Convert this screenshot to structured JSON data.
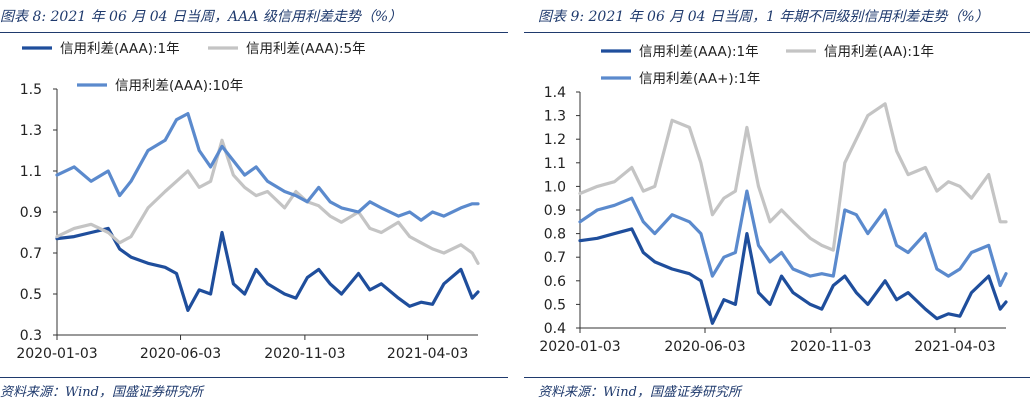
{
  "charts": [
    {
      "title": "图表 8:  2021 年 06 月 04 日当周，AAA 级信用利差走势（%）",
      "source": "资料来源：Wind，国盛证券研究所"
    },
    {
      "title": "图表 9:  2021 年 06 月 04 日当周，1 年期不同级别信用利差走势（%）",
      "source": "资料来源：Wind，国盛证券研究所"
    }
  ],
  "colors": {
    "dark_blue": "#1f4e9c",
    "gray": "#c4c4c4",
    "mid_blue": "#5b8acd",
    "text": "#1f3a6d"
  },
  "chart_data": [
    {
      "type": "line",
      "title": "",
      "xlabel": "",
      "ylabel": "",
      "x_ticks": [
        "2020-01-03",
        "2020-06-03",
        "2020-11-03",
        "2021-04-03"
      ],
      "x_range": [
        "2020-01-03",
        "2021-06-04"
      ],
      "ylim": [
        0.3,
        1.5
      ],
      "y_ticks": [
        0.3,
        0.5,
        0.7,
        0.9,
        1.1,
        1.3,
        1.5
      ],
      "grid": false,
      "legend_position": "top",
      "series": [
        {
          "name": "信用利差(AAA):1年",
          "color": "#1f4e9c",
          "x": [
            "2020-01-03",
            "2020-01-24",
            "2020-02-14",
            "2020-03-06",
            "2020-03-20",
            "2020-04-03",
            "2020-04-24",
            "2020-05-15",
            "2020-05-29",
            "2020-06-12",
            "2020-06-26",
            "2020-07-10",
            "2020-07-24",
            "2020-08-07",
            "2020-08-21",
            "2020-09-04",
            "2020-09-18",
            "2020-10-09",
            "2020-10-23",
            "2020-11-06",
            "2020-11-20",
            "2020-12-04",
            "2020-12-18",
            "2021-01-08",
            "2021-01-22",
            "2021-02-05",
            "2021-02-26",
            "2021-03-12",
            "2021-03-26",
            "2021-04-09",
            "2021-04-23",
            "2021-05-14",
            "2021-05-28",
            "2021-06-04"
          ],
          "values": [
            0.77,
            0.78,
            0.8,
            0.82,
            0.72,
            0.68,
            0.65,
            0.63,
            0.6,
            0.42,
            0.52,
            0.5,
            0.8,
            0.55,
            0.5,
            0.62,
            0.55,
            0.5,
            0.48,
            0.58,
            0.62,
            0.55,
            0.5,
            0.6,
            0.52,
            0.55,
            0.48,
            0.44,
            0.46,
            0.45,
            0.55,
            0.62,
            0.48,
            0.51
          ]
        },
        {
          "name": "信用利差(AAA):5年",
          "color": "#c4c4c4",
          "x": [
            "2020-01-03",
            "2020-01-24",
            "2020-02-14",
            "2020-03-06",
            "2020-03-20",
            "2020-04-03",
            "2020-04-24",
            "2020-05-15",
            "2020-05-29",
            "2020-06-12",
            "2020-06-26",
            "2020-07-10",
            "2020-07-24",
            "2020-08-07",
            "2020-08-21",
            "2020-09-04",
            "2020-09-18",
            "2020-10-09",
            "2020-10-23",
            "2020-11-06",
            "2020-11-20",
            "2020-12-04",
            "2020-12-18",
            "2021-01-08",
            "2021-01-22",
            "2021-02-05",
            "2021-02-26",
            "2021-03-12",
            "2021-03-26",
            "2021-04-09",
            "2021-04-23",
            "2021-05-14",
            "2021-05-28",
            "2021-06-04"
          ],
          "values": [
            0.78,
            0.82,
            0.84,
            0.8,
            0.75,
            0.78,
            0.92,
            1.0,
            1.05,
            1.1,
            1.02,
            1.05,
            1.25,
            1.08,
            1.02,
            0.98,
            1.0,
            0.92,
            1.0,
            0.95,
            0.93,
            0.88,
            0.85,
            0.9,
            0.82,
            0.8,
            0.85,
            0.78,
            0.75,
            0.72,
            0.7,
            0.74,
            0.7,
            0.65
          ]
        },
        {
          "name": "信用利差(AAA):10年",
          "color": "#5b8acd",
          "x": [
            "2020-01-03",
            "2020-01-24",
            "2020-02-14",
            "2020-03-06",
            "2020-03-20",
            "2020-04-03",
            "2020-04-24",
            "2020-05-15",
            "2020-05-29",
            "2020-06-12",
            "2020-06-26",
            "2020-07-10",
            "2020-07-24",
            "2020-08-07",
            "2020-08-21",
            "2020-09-04",
            "2020-09-18",
            "2020-10-09",
            "2020-10-23",
            "2020-11-06",
            "2020-11-20",
            "2020-12-04",
            "2020-12-18",
            "2021-01-08",
            "2021-01-22",
            "2021-02-05",
            "2021-02-26",
            "2021-03-12",
            "2021-03-26",
            "2021-04-09",
            "2021-04-23",
            "2021-05-14",
            "2021-05-28",
            "2021-06-04"
          ],
          "values": [
            1.08,
            1.12,
            1.05,
            1.1,
            0.98,
            1.05,
            1.2,
            1.25,
            1.35,
            1.38,
            1.2,
            1.12,
            1.22,
            1.15,
            1.08,
            1.12,
            1.05,
            1.0,
            0.98,
            0.95,
            1.02,
            0.95,
            0.92,
            0.9,
            0.95,
            0.92,
            0.88,
            0.9,
            0.86,
            0.9,
            0.88,
            0.92,
            0.94,
            0.94
          ]
        }
      ]
    },
    {
      "type": "line",
      "title": "",
      "xlabel": "",
      "ylabel": "",
      "x_ticks": [
        "2020-01-03",
        "2020-06-03",
        "2020-11-03",
        "2021-04-03"
      ],
      "x_range": [
        "2020-01-03",
        "2021-06-04"
      ],
      "ylim": [
        0.4,
        1.4
      ],
      "y_ticks": [
        0.4,
        0.5,
        0.6,
        0.7,
        0.8,
        0.9,
        1.0,
        1.1,
        1.2,
        1.3,
        1.4
      ],
      "grid": false,
      "legend_position": "top",
      "series": [
        {
          "name": "信用利差(AAA):1年",
          "color": "#1f4e9c",
          "x": [
            "2020-01-03",
            "2020-01-24",
            "2020-02-14",
            "2020-03-06",
            "2020-03-20",
            "2020-04-03",
            "2020-04-24",
            "2020-05-15",
            "2020-05-29",
            "2020-06-12",
            "2020-06-26",
            "2020-07-10",
            "2020-07-24",
            "2020-08-07",
            "2020-08-21",
            "2020-09-04",
            "2020-09-18",
            "2020-10-09",
            "2020-10-23",
            "2020-11-06",
            "2020-11-20",
            "2020-12-04",
            "2020-12-18",
            "2021-01-08",
            "2021-01-22",
            "2021-02-05",
            "2021-02-26",
            "2021-03-12",
            "2021-03-26",
            "2021-04-09",
            "2021-04-23",
            "2021-05-14",
            "2021-05-28",
            "2021-06-04"
          ],
          "values": [
            0.77,
            0.78,
            0.8,
            0.82,
            0.72,
            0.68,
            0.65,
            0.63,
            0.6,
            0.42,
            0.52,
            0.5,
            0.8,
            0.55,
            0.5,
            0.62,
            0.55,
            0.5,
            0.48,
            0.58,
            0.62,
            0.55,
            0.5,
            0.6,
            0.52,
            0.55,
            0.48,
            0.44,
            0.46,
            0.45,
            0.55,
            0.62,
            0.48,
            0.51
          ]
        },
        {
          "name": "信用利差(AA):1年",
          "color": "#c4c4c4",
          "x": [
            "2020-01-03",
            "2020-01-24",
            "2020-02-14",
            "2020-03-06",
            "2020-03-20",
            "2020-04-03",
            "2020-04-24",
            "2020-05-15",
            "2020-05-29",
            "2020-06-12",
            "2020-06-26",
            "2020-07-10",
            "2020-07-24",
            "2020-08-07",
            "2020-08-21",
            "2020-09-04",
            "2020-09-18",
            "2020-10-09",
            "2020-10-23",
            "2020-11-06",
            "2020-11-20",
            "2020-12-04",
            "2020-12-18",
            "2021-01-08",
            "2021-01-22",
            "2021-02-05",
            "2021-02-26",
            "2021-03-12",
            "2021-03-26",
            "2021-04-09",
            "2021-04-23",
            "2021-05-14",
            "2021-05-28",
            "2021-06-04"
          ],
          "values": [
            0.97,
            1.0,
            1.02,
            1.08,
            0.98,
            1.0,
            1.28,
            1.25,
            1.1,
            0.88,
            0.95,
            0.98,
            1.25,
            1.0,
            0.85,
            0.9,
            0.85,
            0.78,
            0.75,
            0.73,
            1.1,
            1.2,
            1.3,
            1.35,
            1.15,
            1.05,
            1.08,
            0.98,
            1.02,
            1.0,
            0.95,
            1.05,
            0.85,
            0.85
          ]
        },
        {
          "name": "信用利差(AA+):1年",
          "color": "#5b8acd",
          "x": [
            "2020-01-03",
            "2020-01-24",
            "2020-02-14",
            "2020-03-06",
            "2020-03-20",
            "2020-04-03",
            "2020-04-24",
            "2020-05-15",
            "2020-05-29",
            "2020-06-12",
            "2020-06-26",
            "2020-07-10",
            "2020-07-24",
            "2020-08-07",
            "2020-08-21",
            "2020-09-04",
            "2020-09-18",
            "2020-10-09",
            "2020-10-23",
            "2020-11-06",
            "2020-11-20",
            "2020-12-04",
            "2020-12-18",
            "2021-01-08",
            "2021-01-22",
            "2021-02-05",
            "2021-02-26",
            "2021-03-12",
            "2021-03-26",
            "2021-04-09",
            "2021-04-23",
            "2021-05-14",
            "2021-05-28",
            "2021-06-04"
          ],
          "values": [
            0.85,
            0.9,
            0.92,
            0.95,
            0.85,
            0.8,
            0.88,
            0.85,
            0.8,
            0.62,
            0.7,
            0.72,
            0.98,
            0.75,
            0.68,
            0.72,
            0.65,
            0.62,
            0.63,
            0.62,
            0.9,
            0.88,
            0.8,
            0.9,
            0.75,
            0.72,
            0.8,
            0.65,
            0.62,
            0.65,
            0.72,
            0.75,
            0.58,
            0.63
          ]
        }
      ]
    }
  ]
}
